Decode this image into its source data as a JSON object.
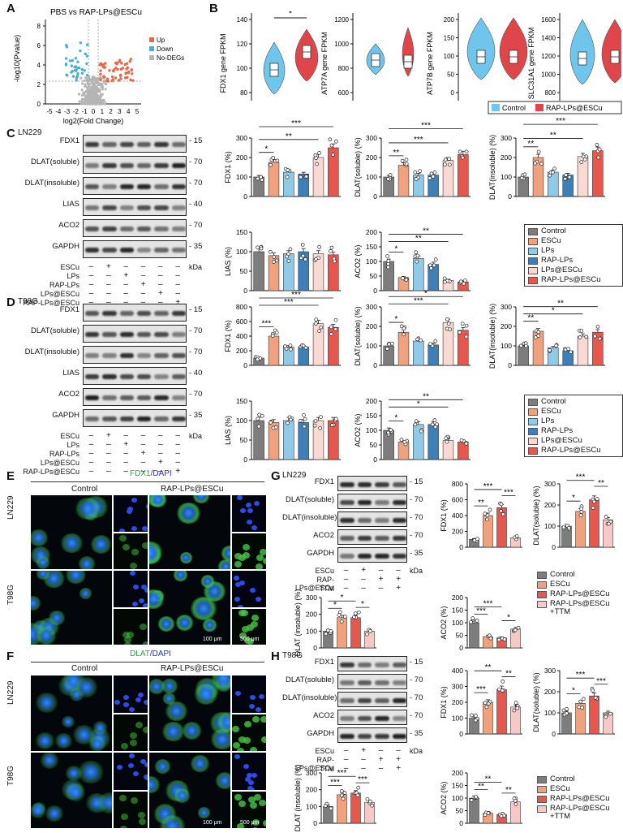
{
  "panels": {
    "A": "A",
    "B": "B",
    "C": "C",
    "D": "D",
    "E": "E",
    "F": "F",
    "G": "G",
    "H": "H"
  },
  "volcano": {
    "title": "PBS vs RAP-LPs@ESCu",
    "ylabel": "-log10(Pvalue)",
    "xlabel": "log2(Fold Change)",
    "xticks": [
      "-5",
      "-4",
      "-3",
      "-2",
      "-1",
      "0",
      "1",
      "2",
      "3",
      "4",
      "5"
    ],
    "yticks": [
      "0",
      "2",
      "4",
      "6",
      "8"
    ],
    "legend": [
      {
        "label": "Up",
        "color": "#e8664a"
      },
      {
        "label": "Down",
        "color": "#4aaed0"
      },
      {
        "label": "No-DEGs",
        "color": "#b5b5b5"
      }
    ]
  },
  "violins": [
    {
      "ylabel": "FDX1 gene FPKM",
      "yticks": [
        "80",
        "100",
        "120",
        "140"
      ],
      "sig": "*"
    },
    {
      "ylabel": "ATP7A gene FPKM",
      "yticks": [
        "600",
        "800",
        "1000",
        "1200"
      ],
      "sig": ""
    },
    {
      "ylabel": "ATP7B gene FPKM",
      "yticks": [
        "0",
        "50",
        "100",
        "150",
        "200"
      ],
      "sig": ""
    },
    {
      "ylabel": "SLC31A1 gene FPKM",
      "yticks": [
        "800",
        "1000",
        "1200",
        "1400",
        "1600"
      ],
      "sig": ""
    }
  ],
  "violin_legend": [
    {
      "label": "Control",
      "color": "#6ec6ec"
    },
    {
      "label": "RAP-LPs@ESCu",
      "color": "#e0454a"
    }
  ],
  "colors": {
    "control": "#7d7d7d",
    "escu": "#f0a27e",
    "lps": "#8fcbe8",
    "rap_lps": "#3f7fb8",
    "lps_escu": "#fbd9d3",
    "rap_lps_escu": "#e8574e",
    "ttm": "#f7c9c6"
  },
  "groups6": [
    "Control",
    "ESCu",
    "LPs",
    "RAP-LPs",
    "LPs@ESCu",
    "RAP-LPs@ESCu"
  ],
  "groups4": [
    "Control",
    "ESCu",
    "RAP-LPs@ESCu",
    "RAP-LPs@ESCu\n+TTM"
  ],
  "blotC": {
    "cell": "LN229",
    "rows": [
      {
        "label": "FDX1",
        "kda": "15"
      },
      {
        "label": "DLAT(soluble)",
        "kda": "70"
      },
      {
        "label": "DLAT(insoluble)",
        "kda": "70"
      },
      {
        "label": "LIAS",
        "kda": "40"
      },
      {
        "label": "ACO2",
        "kda": "70"
      },
      {
        "label": "GAPDH",
        "kda": "35"
      }
    ],
    "kda_unit": "kDa",
    "treat_labels": [
      "ESCu",
      "LPs",
      "RAP-LPs",
      "LPs@ESCu",
      "RAP-LPs@ESCu"
    ],
    "treat_marks": [
      [
        "-",
        "+",
        "-",
        "-",
        "-",
        "-"
      ],
      [
        "-",
        "-",
        "+",
        "-",
        "-",
        "-"
      ],
      [
        "-",
        "-",
        "-",
        "+",
        "-",
        "-"
      ],
      [
        "-",
        "-",
        "-",
        "-",
        "+",
        "-"
      ],
      [
        "-",
        "-",
        "-",
        "-",
        "-",
        "+"
      ]
    ]
  },
  "blotD": {
    "cell": "T98G",
    "rows": [
      {
        "label": "FDX1",
        "kda": "15"
      },
      {
        "label": "DLAT(soluble)",
        "kda": "70"
      },
      {
        "label": "DLAT(insoluble)",
        "kda": "70"
      },
      {
        "label": "LIAS",
        "kda": "40"
      },
      {
        "label": "ACO2",
        "kda": "70"
      },
      {
        "label": "GAPDH",
        "kda": "35"
      }
    ],
    "kda_unit": "kDa",
    "treat_labels": [
      "ESCu",
      "LPs",
      "RAP-LPs",
      "LPs@ESCu",
      "RAP-LPs@ESCu"
    ]
  },
  "blotG": {
    "cell": "LN229",
    "rows": [
      {
        "label": "FDX1",
        "kda": "15"
      },
      {
        "label": "DLAT(soluble)",
        "kda": "70"
      },
      {
        "label": "DLAT(insoluble)",
        "kda": "70"
      },
      {
        "label": "ACO2",
        "kda": "70"
      },
      {
        "label": "GAPDH",
        "kda": "35"
      }
    ],
    "kda_unit": "kDa",
    "treat_labels": [
      "ESCu",
      "RAP-LPs@ESCu",
      "TTM"
    ],
    "treat_marks": [
      [
        "-",
        "+",
        "-",
        "-"
      ],
      [
        "-",
        "-",
        "+",
        "+"
      ],
      [
        "-",
        "-",
        "-",
        "+"
      ]
    ]
  },
  "blotH": {
    "cell": "T98G",
    "rows": [
      {
        "label": "FDX1",
        "kda": "15"
      },
      {
        "label": "DLAT(soluble)",
        "kda": "70"
      },
      {
        "label": "DLAT(insoluble)",
        "kda": "70"
      },
      {
        "label": "ACO2",
        "kda": "70"
      },
      {
        "label": "GAPDH",
        "kda": "35"
      }
    ],
    "kda_unit": "kDa",
    "treat_labels": [
      "ESCu",
      "RAP-LPs@ESCu",
      "TTM"
    ]
  },
  "microscopy": {
    "E_title_a": "FDX1",
    "E_title_b": "/DAPI",
    "F_title_a": "DLAT",
    "F_title_b": "/DAPI",
    "col_control": "Control",
    "col_treat": "RAP-LPs@ESCu",
    "row_ln229": "LN229",
    "row_t98g": "T98G",
    "scale_small": "100 μm",
    "scale_large": "500 μm"
  },
  "chart_data": [
    {
      "id": "C-FDX1",
      "type": "bar",
      "ylabel": "FDX1 (%)",
      "yticks": [
        0,
        100,
        200,
        300
      ],
      "ylim": [
        0,
        300
      ],
      "values": [
        100,
        175,
        125,
        115,
        200,
        250
      ],
      "sig": [
        [
          "*",
          0,
          1
        ],
        [
          "**",
          0,
          4
        ],
        [
          "***",
          0,
          5
        ]
      ]
    },
    {
      "id": "C-DLATsol",
      "type": "bar",
      "ylabel": "DLAT(soluble) (%)",
      "yticks": [
        0,
        100,
        200,
        300
      ],
      "ylim": [
        0,
        300
      ],
      "values": [
        100,
        160,
        110,
        110,
        185,
        215
      ],
      "sig": [
        [
          "**",
          0,
          1
        ],
        [
          "***",
          0,
          4
        ],
        [
          "***",
          0,
          5
        ]
      ]
    },
    {
      "id": "C-DLATins",
      "type": "bar",
      "ylabel": "DLAT(insoluble) (%)",
      "yticks": [
        0,
        100,
        200,
        300
      ],
      "ylim": [
        0,
        300
      ],
      "values": [
        100,
        200,
        125,
        110,
        205,
        235
      ],
      "sig": [
        [
          "**",
          0,
          1
        ],
        [
          "**",
          0,
          4
        ],
        [
          "***",
          0,
          5
        ]
      ]
    },
    {
      "id": "C-LIAS",
      "type": "bar",
      "ylabel": "LIAS (%)",
      "yticks": [
        0,
        50,
        100,
        150
      ],
      "ylim": [
        0,
        150
      ],
      "values": [
        100,
        90,
        95,
        100,
        95,
        92
      ],
      "sig": []
    },
    {
      "id": "C-ACO2",
      "type": "bar",
      "ylabel": "ACO2 (%)",
      "yticks": [
        0,
        50,
        100,
        150,
        200
      ],
      "ylim": [
        0,
        200
      ],
      "values": [
        100,
        45,
        110,
        90,
        35,
        30
      ],
      "sig": [
        [
          "*",
          0,
          1
        ],
        [
          "**",
          0,
          4
        ],
        [
          "**",
          0,
          5
        ]
      ]
    },
    {
      "id": "D-FDX1",
      "type": "bar",
      "ylabel": "FDX1 (%)",
      "yticks": [
        0,
        200,
        400,
        600,
        800
      ],
      "ylim": [
        0,
        800
      ],
      "values": [
        100,
        400,
        250,
        250,
        570,
        520
      ],
      "sig": [
        [
          "***",
          0,
          1
        ],
        [
          "***",
          0,
          4
        ],
        [
          "***",
          0,
          5
        ]
      ]
    },
    {
      "id": "D-DLATsol",
      "type": "bar",
      "ylabel": "DLAT(soluble) (%)",
      "yticks": [
        0,
        100,
        200,
        300
      ],
      "ylim": [
        0,
        300
      ],
      "values": [
        100,
        170,
        125,
        105,
        220,
        180
      ],
      "sig": [
        [
          "*",
          0,
          1
        ],
        [
          "***",
          0,
          4
        ],
        [
          "*",
          0,
          5
        ]
      ]
    },
    {
      "id": "D-DLATins",
      "type": "bar",
      "ylabel": "DLAT(insoluble) (%)",
      "yticks": [
        0,
        100,
        200,
        300
      ],
      "ylim": [
        0,
        300
      ],
      "values": [
        100,
        175,
        90,
        75,
        150,
        170
      ],
      "sig": [
        [
          "**",
          0,
          1
        ],
        [
          "*",
          0,
          4
        ],
        [
          "**",
          0,
          5
        ]
      ]
    },
    {
      "id": "D-LIAS",
      "type": "bar",
      "ylabel": "LIAS (%)",
      "yticks": [
        0,
        50,
        100,
        150
      ],
      "ylim": [
        0,
        150
      ],
      "values": [
        100,
        95,
        100,
        95,
        100,
        100
      ],
      "sig": []
    },
    {
      "id": "D-ACO2",
      "type": "bar",
      "ylabel": "ACO2 (%)",
      "yticks": [
        0,
        50,
        100,
        150,
        200
      ],
      "ylim": [
        0,
        200
      ],
      "values": [
        100,
        60,
        120,
        120,
        65,
        60
      ],
      "sig": [
        [
          "*",
          0,
          1
        ],
        [
          "*",
          0,
          4
        ],
        [
          "**",
          0,
          5
        ]
      ]
    },
    {
      "id": "G-FDX1",
      "type": "bar",
      "ylabel": "FDX1 (%)",
      "yticks": [
        0,
        200,
        400,
        600,
        800
      ],
      "ylim": [
        0,
        800
      ],
      "values": [
        100,
        400,
        500,
        120
      ],
      "sig": [
        [
          "**",
          0,
          1
        ],
        [
          "***",
          0,
          2
        ],
        [
          "***",
          2,
          3
        ]
      ]
    },
    {
      "id": "G-DLATsol",
      "type": "bar",
      "ylabel": "DLAT(soluble) (%)",
      "yticks": [
        0,
        100,
        200,
        300
      ],
      "ylim": [
        0,
        300
      ],
      "values": [
        100,
        170,
        225,
        130
      ],
      "sig": [
        [
          "*",
          0,
          1
        ],
        [
          "***",
          0,
          2
        ],
        [
          "**",
          2,
          3
        ]
      ]
    },
    {
      "id": "G-DLATins",
      "type": "bar",
      "ylabel": "DLAT (insoluble) (%)",
      "yticks": [
        0,
        100,
        200,
        300
      ],
      "ylim": [
        0,
        300
      ],
      "values": [
        100,
        180,
        180,
        100
      ],
      "sig": [
        [
          "*",
          0,
          1
        ],
        [
          "*",
          0,
          2
        ],
        [
          "*",
          2,
          3
        ]
      ]
    },
    {
      "id": "G-ACO2",
      "type": "bar",
      "ylabel": "ACO2 (%)",
      "yticks": [
        0,
        50,
        100,
        150,
        200
      ],
      "ylim": [
        0,
        200
      ],
      "values": [
        100,
        45,
        40,
        75
      ],
      "sig": [
        [
          "***",
          0,
          1
        ],
        [
          "***",
          0,
          2
        ],
        [
          "*",
          2,
          3
        ]
      ]
    },
    {
      "id": "H-FDX1",
      "type": "bar",
      "ylabel": "FDX1 (%)",
      "yticks": [
        0,
        100,
        200,
        300,
        400
      ],
      "ylim": [
        0,
        400
      ],
      "values": [
        100,
        200,
        280,
        170
      ],
      "sig": [
        [
          "***",
          0,
          1
        ],
        [
          "**",
          0,
          2
        ],
        [
          "**",
          2,
          3
        ]
      ]
    },
    {
      "id": "H-DLATsol",
      "type": "bar",
      "ylabel": "DLAT(soluble) (%)",
      "yticks": [
        0,
        100,
        200,
        300
      ],
      "ylim": [
        0,
        300
      ],
      "values": [
        100,
        145,
        180,
        100
      ],
      "sig": [
        [
          "*",
          0,
          1
        ],
        [
          "***",
          0,
          2
        ],
        [
          "***",
          2,
          3
        ]
      ]
    },
    {
      "id": "H-DLATins",
      "type": "bar",
      "ylabel": "DLAT (insoluble) (%)",
      "yticks": [
        0,
        100,
        200,
        300
      ],
      "ylim": [
        0,
        300
      ],
      "values": [
        100,
        170,
        180,
        125
      ],
      "sig": [
        [
          "***",
          0,
          1
        ],
        [
          "***",
          0,
          2
        ],
        [
          "***",
          2,
          3
        ]
      ]
    },
    {
      "id": "H-ACO2",
      "type": "bar",
      "ylabel": "ACO2 (%)",
      "yticks": [
        0,
        50,
        100,
        150,
        200
      ],
      "ylim": [
        0,
        200
      ],
      "values": [
        100,
        40,
        35,
        85
      ],
      "sig": [
        [
          "**",
          0,
          1
        ],
        [
          "**",
          0,
          2
        ],
        [
          "**",
          2,
          3
        ]
      ]
    }
  ]
}
